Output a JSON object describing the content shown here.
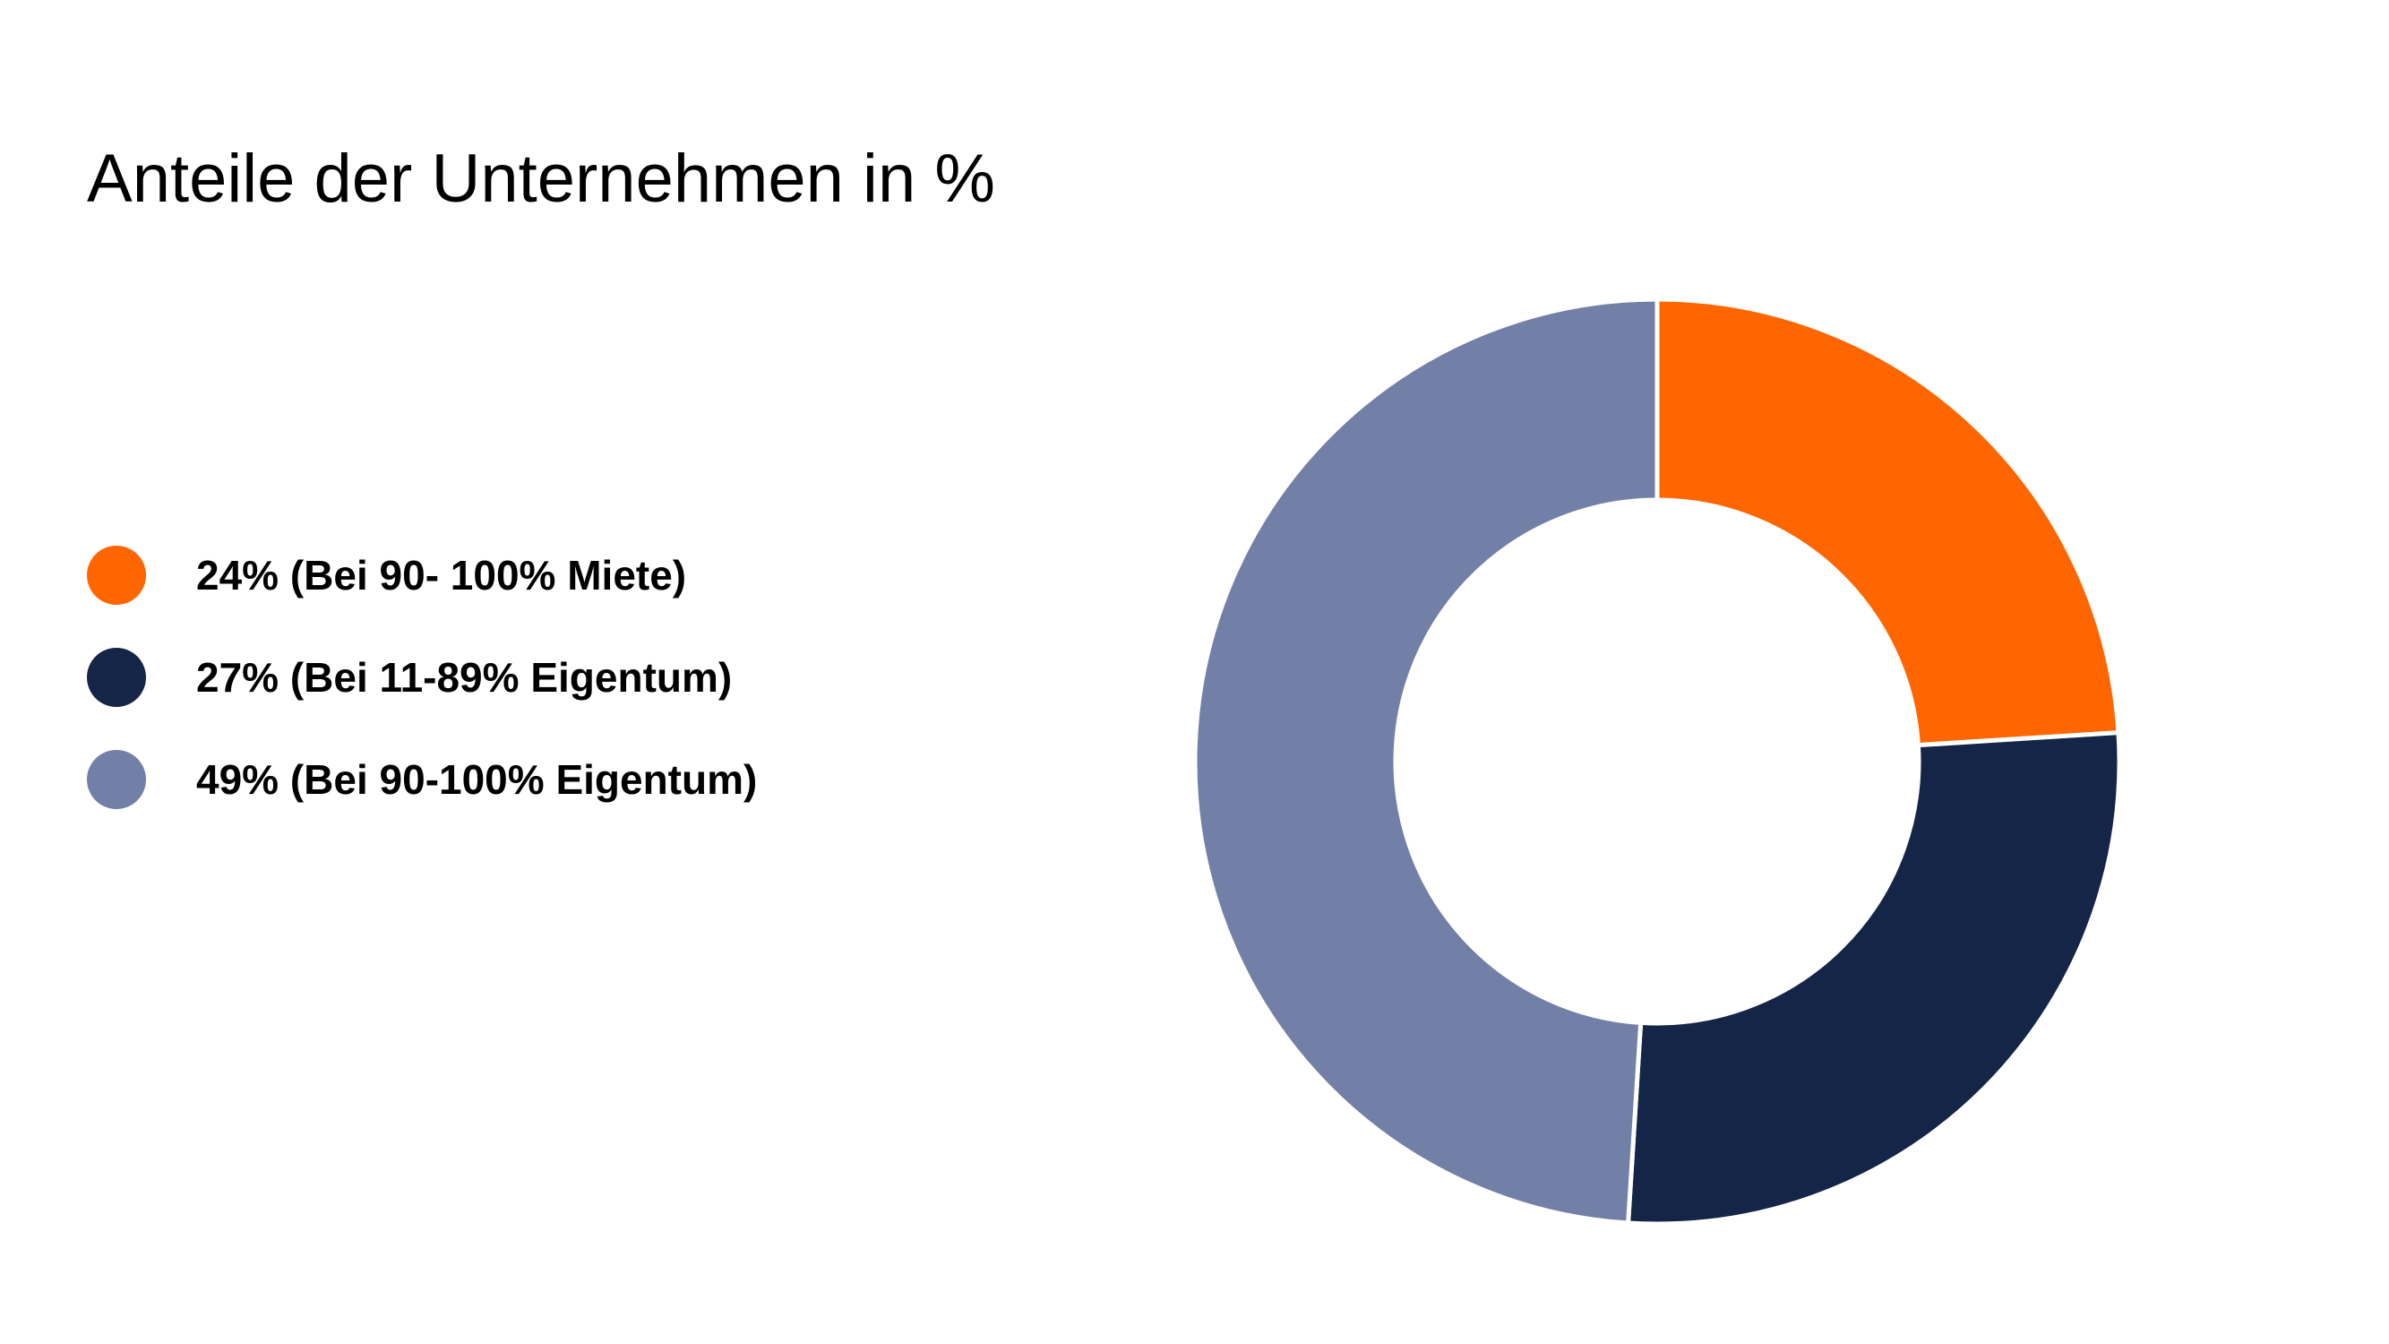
{
  "chart_data": {
    "type": "pie",
    "variant": "donut",
    "title": "Anteile der Unternehmen in %",
    "legend_position": "left",
    "slices": [
      {
        "label": "24% (Bei 90- 100% Miete)",
        "value": 24,
        "color": "#ff6600"
      },
      {
        "label": "27% (Bei 11-89% Eigentum)",
        "value": 27,
        "color": "#142548"
      },
      {
        "label": "49% (Bei 90-100% Eigentum)",
        "value": 49,
        "color": "#7280a8"
      }
    ]
  }
}
